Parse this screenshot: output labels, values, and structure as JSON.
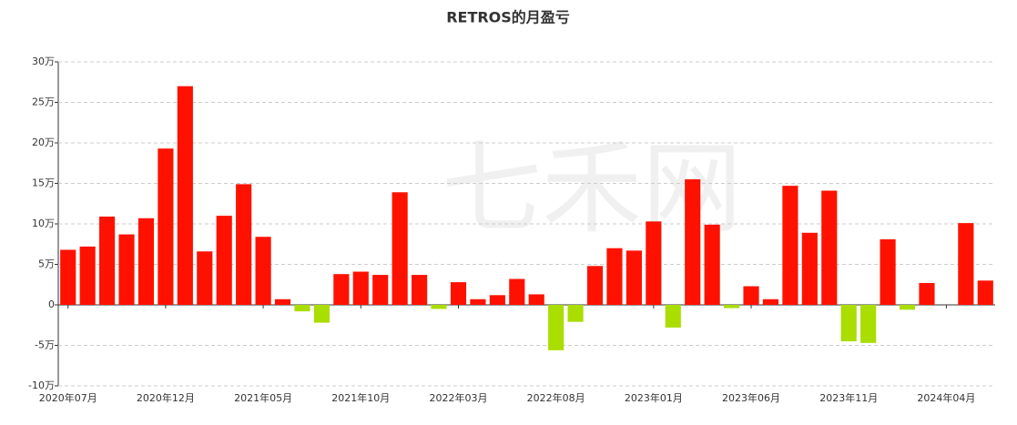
{
  "chart_data": {
    "type": "bar",
    "title": "RETROS的月盈亏",
    "watermark": "七禾网",
    "categories": [
      "2020年07月",
      null,
      null,
      null,
      null,
      "2020年12月",
      null,
      null,
      null,
      null,
      "2021年05月",
      null,
      null,
      null,
      null,
      "2021年10月",
      null,
      null,
      null,
      null,
      "2022年03月",
      null,
      null,
      null,
      null,
      "2022年08月",
      null,
      null,
      null,
      null,
      "2023年01月",
      null,
      null,
      null,
      null,
      "2023年06月",
      null,
      null,
      null,
      null,
      "2023年11月",
      null,
      null,
      null,
      null,
      "2024年04月",
      null,
      null
    ],
    "values": [
      6.8,
      7.2,
      10.9,
      8.7,
      10.7,
      19.3,
      27.0,
      6.6,
      11.0,
      14.9,
      8.4,
      0.7,
      -0.8,
      -2.2,
      3.8,
      4.1,
      3.7,
      13.9,
      3.7,
      -0.5,
      2.8,
      0.7,
      1.2,
      3.2,
      1.3,
      -5.6,
      -2.1,
      4.8,
      7.0,
      6.7,
      10.3,
      -2.8,
      15.5,
      9.9,
      -0.4,
      2.3,
      0.7,
      14.7,
      8.9,
      14.1,
      -4.5,
      -4.7,
      8.1,
      -0.6,
      2.7,
      0,
      10.1,
      3.0
    ],
    "color": "#ff1100",
    "negative_color": "#aadd00",
    "ylim": [
      -10,
      30
    ],
    "yticks": [
      {
        "value": -10,
        "label": "-10万"
      },
      {
        "value": -5,
        "label": "-5万"
      },
      {
        "value": 0,
        "label": "0"
      },
      {
        "value": 5,
        "label": "5万"
      },
      {
        "value": 10,
        "label": "10万"
      },
      {
        "value": 15,
        "label": "15万"
      },
      {
        "value": 20,
        "label": "20万"
      },
      {
        "value": 25,
        "label": "25万"
      },
      {
        "value": 30,
        "label": "30万"
      }
    ],
    "grid": true
  }
}
